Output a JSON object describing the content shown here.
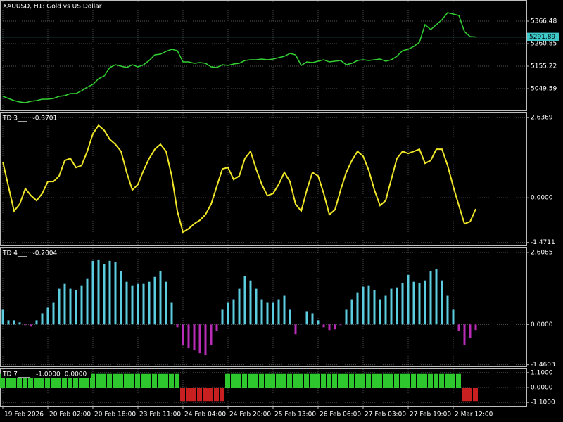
{
  "chart_data": [
    {
      "type": "line",
      "title": "XAUUSD, H1:  Gold vs US Dollar",
      "color": "#32d232",
      "categories": [
        "19 Feb 2026",
        null,
        null,
        null,
        null,
        null,
        null,
        null,
        "20 Feb 02:00",
        null,
        null,
        null,
        null,
        null,
        null,
        null,
        "20 Feb 18:00",
        null,
        null,
        null,
        null,
        null,
        null,
        null,
        "23 Feb 11:00",
        null,
        null,
        null,
        null,
        null,
        null,
        null,
        "24 Feb 04:00",
        null,
        null,
        null,
        null,
        null,
        null,
        null,
        "24 Feb 20:00",
        null,
        null,
        null,
        null,
        null,
        null,
        null,
        "25 Feb 13:00",
        null,
        null,
        null,
        null,
        null,
        null,
        null,
        "26 Feb 06:00",
        null,
        null,
        null,
        null,
        null,
        null,
        null,
        "27 Feb 03:00",
        null,
        null,
        null,
        null,
        null,
        null,
        null,
        "27 Feb 19:00",
        null,
        null,
        null,
        null,
        null,
        null,
        null,
        "2 Mar 12:00",
        null,
        null,
        null,
        null
      ],
      "values": [
        5013.4,
        5003.4,
        4993.5,
        4986.9,
        4983.6,
        4990.2,
        4993.5,
        5000.1,
        5000.1,
        5003.4,
        5013.4,
        5016.6,
        5026.5,
        5026.5,
        5039.7,
        5056.2,
        5069.4,
        5095.8,
        5109.0,
        5148.6,
        5161.8,
        5155.2,
        5148.6,
        5161.8,
        5151.9,
        5161.8,
        5181.6,
        5208.1,
        5211.4,
        5224.6,
        5234.5,
        5227.9,
        5175.0,
        5175.0,
        5168.4,
        5171.7,
        5168.4,
        5151.9,
        5148.6,
        5161.8,
        5158.5,
        5165.1,
        5168.4,
        5181.6,
        5184.9,
        5184.9,
        5188.2,
        5184.9,
        5188.2,
        5194.9,
        5201.5,
        5214.7,
        5208.1,
        5158.5,
        5175.0,
        5171.7,
        5178.3,
        5184.9,
        5175.0,
        5178.3,
        5181.6,
        5161.8,
        5168.4,
        5181.6,
        5184.9,
        5181.6,
        5184.9,
        5188.2,
        5178.3,
        5184.9,
        5201.5,
        5227.9,
        5234.5,
        5247.7,
        5267.5,
        5350.0,
        5326.9,
        5350.0,
        5373.1,
        5406.1,
        5399.5,
        5392.9,
        5317.0,
        5293.9,
        5291.9
      ],
      "ylim": [
        4947.3,
        5459.0
      ],
      "yticks": [
        5366.48,
        5260.85,
        5155.22,
        5049.59
      ],
      "grid": true,
      "last_price": 5291.89,
      "last_price_color": "#3ec8c8"
    },
    {
      "type": "line",
      "title": "TD 3___",
      "last_value": -0.3701,
      "color": "#f0e628",
      "values": [
        1.18,
        0.37,
        -0.439,
        -0.208,
        0.301,
        0.069,
        -0.093,
        0.139,
        0.532,
        0.532,
        0.717,
        1.226,
        1.295,
        0.995,
        1.064,
        1.527,
        2.105,
        2.382,
        2.22,
        1.92,
        1.758,
        1.527,
        0.833,
        0.254,
        0.439,
        0.902,
        1.295,
        1.596,
        1.758,
        1.527,
        0.717,
        -0.439,
        -1.133,
        -1.018,
        -0.856,
        -0.74,
        -0.555,
        -0.208,
        0.37,
        0.948,
        0.995,
        0.601,
        0.717,
        1.295,
        1.527,
        0.948,
        0.439,
        0.069,
        0.139,
        0.439,
        0.833,
        0.532,
        -0.208,
        -0.439,
        0.254,
        0.833,
        0.717,
        0.139,
        -0.555,
        -0.393,
        0.254,
        0.833,
        1.226,
        1.527,
        1.365,
        0.902,
        0.254,
        -0.254,
        -0.093,
        0.601,
        1.295,
        1.527,
        1.457,
        1.527,
        1.596,
        1.133,
        1.226,
        1.596,
        1.596,
        1.064,
        0.37,
        -0.254,
        -0.856,
        -0.786,
        -0.3701
      ],
      "ylim": [
        -1.57,
        2.78
      ],
      "yticks": [
        2.6369,
        {
          "value": 0,
          "label": "0.0000"
        },
        -1.4711
      ],
      "grid": true
    },
    {
      "type": "histogram",
      "title": "TD 4___",
      "last_value": -0.2004,
      "up_color": "#5ccde0",
      "down_color": "#b82cb8",
      "values": [
        0.532,
        0.152,
        0.152,
        0.076,
        -0.025,
        -0.076,
        0.152,
        0.405,
        0.608,
        0.785,
        1.292,
        1.469,
        1.292,
        1.241,
        1.418,
        1.672,
        2.305,
        2.356,
        2.178,
        2.305,
        2.254,
        1.925,
        1.545,
        1.418,
        1.469,
        1.469,
        1.545,
        1.722,
        1.925,
        1.545,
        0.785,
        -0.101,
        -0.735,
        -0.861,
        -0.937,
        -1.039,
        -1.115,
        -0.735,
        -0.228,
        0.532,
        0.785,
        0.912,
        1.292,
        1.748,
        1.596,
        1.292,
        0.912,
        0.785,
        0.785,
        0.912,
        1.039,
        0.532,
        -0.355,
        0.025,
        0.481,
        0.405,
        0.152,
        -0.101,
        -0.203,
        -0.177,
        -0.025,
        0.532,
        0.912,
        1.165,
        1.368,
        1.418,
        1.241,
        0.912,
        1.039,
        1.292,
        1.342,
        1.494,
        1.798,
        1.545,
        1.494,
        1.596,
        1.925,
        2.001,
        1.596,
        1.039,
        0.532,
        -0.228,
        -0.735,
        -0.481,
        -0.2004
      ],
      "ylim": [
        -1.52,
        2.76
      ],
      "yticks": [
        2.6085,
        {
          "value": 0,
          "label": "0.0000"
        },
        -1.4603
      ],
      "grid": true
    },
    {
      "type": "bar",
      "title": "TD 7____",
      "last_values": [
        {
          "value": -1,
          "label": "-1.0000"
        },
        {
          "value": 0,
          "label": "0.0000"
        }
      ],
      "up_color": "#2ec82e",
      "down_color": "#c82020",
      "values": [
        1,
        1,
        1,
        1,
        1,
        1,
        1,
        1,
        1,
        1,
        1,
        1,
        1,
        1,
        1,
        1,
        1,
        1,
        1,
        1,
        1,
        1,
        1,
        1,
        1,
        1,
        1,
        1,
        1,
        1,
        1,
        1,
        -1,
        -1,
        -1,
        -1,
        -1,
        -1,
        -1,
        -1,
        1,
        1,
        1,
        1,
        1,
        1,
        1,
        1,
        1,
        1,
        1,
        1,
        1,
        1,
        1,
        1,
        1,
        1,
        1,
        1,
        1,
        1,
        1,
        1,
        1,
        1,
        1,
        1,
        1,
        1,
        1,
        1,
        1,
        1,
        1,
        1,
        1,
        1,
        1,
        1,
        1,
        1,
        -1,
        -1,
        -1
      ],
      "ylim": [
        -1.35,
        1.35
      ],
      "yticks": [
        {
          "value": 1.1,
          "label": "1.1000"
        },
        {
          "value": 0,
          "label": "0.0000"
        },
        {
          "value": -1.1,
          "label": "-1.1000"
        }
      ],
      "grid": true
    }
  ]
}
